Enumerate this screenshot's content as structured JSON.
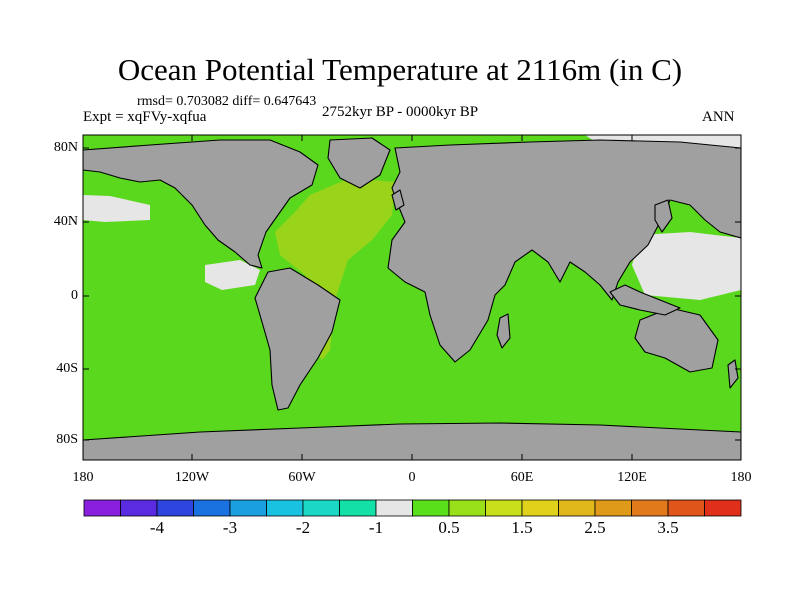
{
  "title": "Ocean Potential Temperature at 2116m (in C)",
  "stats_text": "rmsd= 0.703082 diff= 0.647643",
  "expt_text": "Expt = xqFVy-xqfua",
  "period_text": "2752kyr BP - 0000kyr BP",
  "season_text": "ANN",
  "lat_labels": [
    "80N",
    "40N",
    "0",
    "40S",
    "80S"
  ],
  "lon_labels": [
    "180",
    "120W",
    "60W",
    "0",
    "60E",
    "120E",
    "180"
  ],
  "colorbar": {
    "colors": [
      "#8a1fe0",
      "#5a2be0",
      "#2f45e0",
      "#1a72e0",
      "#1a9fe0",
      "#19c2e0",
      "#1ad8c4",
      "#12e0a6",
      "#e6e6e6",
      "#5ae01a",
      "#9ae01a",
      "#c8e01a",
      "#e0d21a",
      "#e0b81a",
      "#e09a1a",
      "#e07a1a",
      "#e0551a",
      "#e0301a"
    ],
    "labels": [
      "-4",
      "-3",
      "-2",
      "-1",
      "0.5",
      "1.5",
      "2.5",
      "3.5"
    ]
  },
  "map_colors": {
    "land": "#a0a0a0",
    "ocean_main": "#5ad81e",
    "atlantic": "#9ad41a",
    "near_zero": "#e6e6e6",
    "arctic_cyan": "#1ad8c4",
    "coast": "#000000"
  }
}
